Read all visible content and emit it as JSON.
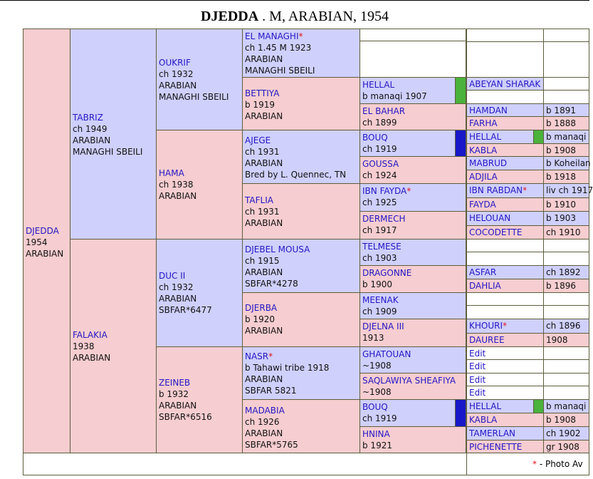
{
  "title": {
    "name": "DJEDDA",
    "rest": " . M, ARABIAN, 1954"
  },
  "g0": {
    "name": "DJEDDA",
    "l1": "1954",
    "l2": "ARABIAN"
  },
  "g1": [
    {
      "name": "TABRIZ",
      "l1": "ch 1949",
      "l2": "ARABIAN",
      "l3": "MANAGHI SBEILI"
    },
    {
      "name": "FALAKIA",
      "l1": "1938",
      "l2": "ARABIAN"
    }
  ],
  "g2": [
    {
      "name": "OUKRIF",
      "l1": "ch 1932",
      "l2": "ARABIAN",
      "l3": "MANAGHI SBEILI"
    },
    {
      "name": "HAMA",
      "l1": "ch 1938",
      "l2": "ARABIAN"
    },
    {
      "name": "DUC II",
      "l1": "ch 1932",
      "l2": "ARABIAN",
      "l3": "SBFAR*6477"
    },
    {
      "name": "ZEINEB",
      "l1": "b 1932",
      "l2": "ARABIAN",
      "l3": "SBFAR*6516"
    }
  ],
  "g3": [
    {
      "name": "EL MANAGHI",
      "star": "*",
      "l1": "ch 1.45 M 1923",
      "l2": "ARABIAN",
      "l3": "MANAGHI SBEILI"
    },
    {
      "name": "BETTIYA",
      "l1": "b 1919",
      "l2": "ARABIAN"
    },
    {
      "name": "AJEGE",
      "l1": "ch 1931",
      "l2": "ARABIAN",
      "l3": "Bred by L. Quennec, TN"
    },
    {
      "name": "TAFLIA",
      "l1": "ch 1931",
      "l2": "ARABIAN"
    },
    {
      "name": "DJEBEL MOUSA",
      "l1": "ch 1915",
      "l2": "ARABIAN",
      "l3": "SBFAR*4278"
    },
    {
      "name": "DJERBA",
      "l1": "b 1920",
      "l2": "ARABIAN"
    },
    {
      "name": "NASR",
      "star": "*",
      "l1": "b Tahawi tribe 1918",
      "l2": "ARABIAN",
      "l3": "SBFAR 5821"
    },
    {
      "name": "MADABIA",
      "l1": "ch 1926",
      "l2": "ARABIAN",
      "l3": "SBFAR*5765"
    }
  ],
  "g4": [
    {
      "name": "HELLAL",
      "l1": "b manaqi 1907"
    },
    {
      "name": "EL BAHAR",
      "l1": "ch 1899"
    },
    {
      "name": "BOUQ",
      "l1": "ch 1919"
    },
    {
      "name": "GOUSSA",
      "l1": "ch 1924"
    },
    {
      "name": "IBN FAYDA",
      "star": "*",
      "l1": "ch 1925"
    },
    {
      "name": "DERMECH",
      "l1": "ch 1917"
    },
    {
      "name": "TELMESE",
      "l1": "ch 1903"
    },
    {
      "name": "DRAGONNE",
      "l1": "b 1900"
    },
    {
      "name": "MEENAK",
      "l1": "ch 1909"
    },
    {
      "name": "DJELNA III",
      "l1": "1913"
    },
    {
      "name": "GHATOUAN",
      "l1": "~1908"
    },
    {
      "name": "SAQLAWIYA SHEAFIYA",
      "l1": "~1908"
    },
    {
      "name": "BOUQ",
      "l1": "ch 1919"
    },
    {
      "name": "HNINA",
      "l1": "b 1921"
    }
  ],
  "g5": [
    {
      "name": "ABEYAN SHARAK",
      "info": ""
    },
    {
      "name": "HAMDAN",
      "info": "b 1891"
    },
    {
      "name": "FARHA",
      "info": "b 1888"
    },
    {
      "name": "HELLAL",
      "info": "b manaqi"
    },
    {
      "name": "KABLA",
      "info": "b 1908"
    },
    {
      "name": "MABRUD",
      "info": "b Koheilan"
    },
    {
      "name": "ADJILA",
      "info": "b 1918"
    },
    {
      "name": "IBN RABDAN",
      "star": "*",
      "info": "liv ch 1917"
    },
    {
      "name": "FAYDA",
      "info": "b 1910"
    },
    {
      "name": "HELOUAN",
      "info": "b 1903"
    },
    {
      "name": "COCODETTE",
      "info": "ch 1910"
    },
    {
      "name": "ASFAR",
      "info": "ch 1892"
    },
    {
      "name": "DAHLIA",
      "info": "b 1896"
    },
    {
      "name": "KHOURI",
      "star": "*",
      "info": "ch 1896"
    },
    {
      "name": "DAUREE",
      "info": "1908"
    },
    {
      "name": "HELLAL",
      "info": "b manaqi"
    },
    {
      "name": "KABLA",
      "info": "b 1908"
    },
    {
      "name": "TAMERLAN",
      "info": "ch 1902"
    },
    {
      "name": "PICHENETTE",
      "info": "gr 1908"
    }
  ],
  "edit_label": "Edit",
  "footer": {
    "star": "*",
    "note": " - Photo Av"
  }
}
